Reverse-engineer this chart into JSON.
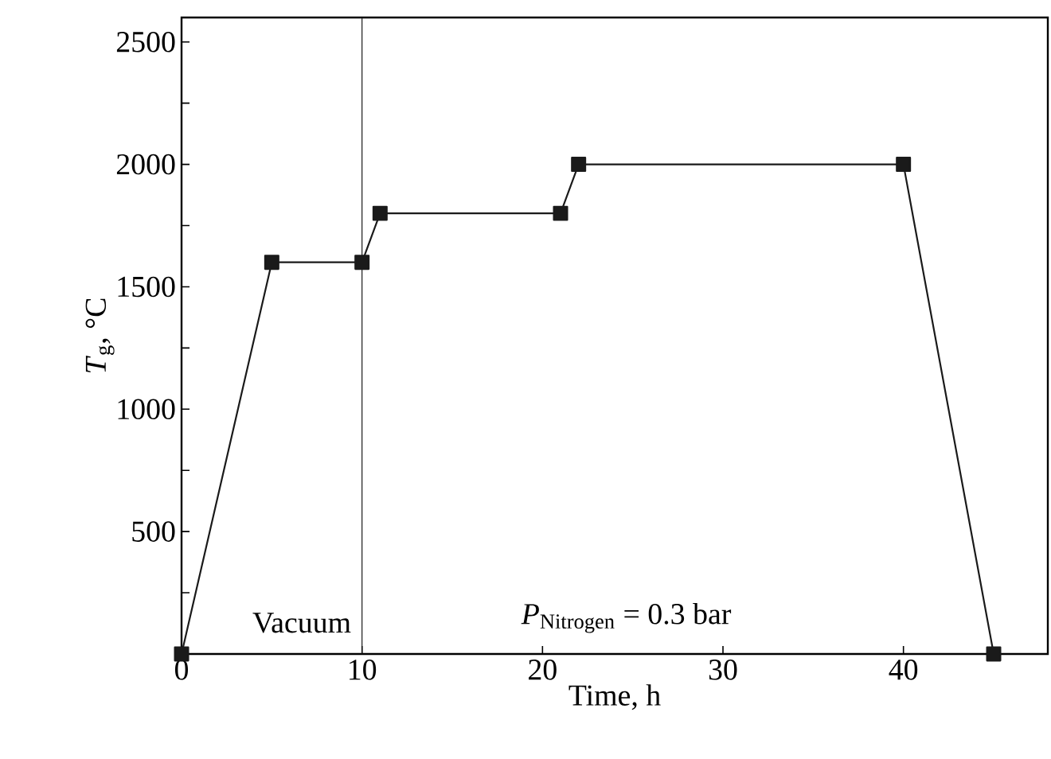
{
  "chart_data": {
    "type": "line",
    "xlabel": "Time, h",
    "ylabel": "*T*$_{g}$, °C",
    "x": [
      0,
      5,
      10,
      11,
      21,
      22,
      40,
      45
    ],
    "series": [
      {
        "color": "#1a1a1a",
        "values": [
          0,
          1600,
          1600,
          1800,
          1800,
          2000,
          2000,
          0
        ]
      }
    ],
    "marker": "square",
    "line_style": "solid",
    "xlim": [
      0,
      48
    ],
    "xticks": [
      0,
      10,
      20,
      30,
      40
    ],
    "ylim": [
      0,
      2600
    ],
    "yticks": [
      {
        "value": 250,
        "label": null
      },
      500,
      {
        "value": 750,
        "label": null
      },
      1000,
      {
        "value": 1250,
        "label": null
      },
      1500,
      {
        "value": 1750,
        "label": null
      },
      2000,
      {
        "value": 2250,
        "label": null
      },
      2500
    ],
    "ref_lines": [
      {
        "axis": "x",
        "value": 10,
        "color": "#1a1a1a"
      }
    ],
    "annotations": [
      "Vacuum",
      "*P*$_{Nitrogen}$ = 0.3 bar"
    ]
  }
}
